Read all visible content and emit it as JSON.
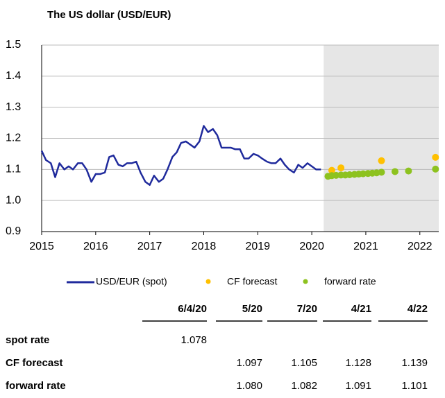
{
  "chart_data": {
    "type": "line_scatter",
    "title": "The US dollar (USD/EUR)",
    "xlim": [
      2015,
      2022.35
    ],
    "xticks": [
      2015,
      2016,
      2017,
      2018,
      2019,
      2020,
      2021,
      2022
    ],
    "ylim": [
      0.9,
      1.5
    ],
    "yticks": [
      {
        "value": 0.9,
        "label": "0.9"
      },
      {
        "value": 1.0,
        "label": "1.0"
      },
      1.1,
      1.2,
      1.3,
      1.4,
      1.5
    ],
    "grid": true,
    "shaded_region": [
      2020.22,
      2022.35
    ],
    "shade_color": "#e6e6e6",
    "series": [
      {
        "name": "USD/EUR (spot)",
        "kind": "line",
        "color": "#1f2a9c",
        "x": [
          2015.0,
          2015.08,
          2015.17,
          2015.25,
          2015.33,
          2015.42,
          2015.5,
          2015.58,
          2015.67,
          2015.75,
          2015.83,
          2015.92,
          2016.0,
          2016.08,
          2016.17,
          2016.25,
          2016.33,
          2016.42,
          2016.5,
          2016.58,
          2016.67,
          2016.75,
          2016.83,
          2016.92,
          2017.0,
          2017.08,
          2017.17,
          2017.25,
          2017.33,
          2017.42,
          2017.5,
          2017.58,
          2017.67,
          2017.75,
          2017.83,
          2017.92,
          2018.0,
          2018.08,
          2018.17,
          2018.25,
          2018.33,
          2018.42,
          2018.5,
          2018.58,
          2018.67,
          2018.75,
          2018.83,
          2018.92,
          2019.0,
          2019.08,
          2019.17,
          2019.25,
          2019.33,
          2019.42,
          2019.5,
          2019.58,
          2019.67,
          2019.75,
          2019.83,
          2019.92,
          2020.0,
          2020.08,
          2020.17
        ],
        "values": [
          1.16,
          1.13,
          1.12,
          1.075,
          1.12,
          1.1,
          1.11,
          1.1,
          1.12,
          1.12,
          1.1,
          1.06,
          1.085,
          1.085,
          1.09,
          1.14,
          1.145,
          1.115,
          1.11,
          1.12,
          1.12,
          1.125,
          1.09,
          1.06,
          1.05,
          1.08,
          1.06,
          1.07,
          1.1,
          1.14,
          1.155,
          1.185,
          1.19,
          1.18,
          1.17,
          1.19,
          1.24,
          1.22,
          1.23,
          1.21,
          1.17,
          1.17,
          1.17,
          1.165,
          1.165,
          1.135,
          1.135,
          1.15,
          1.145,
          1.135,
          1.125,
          1.12,
          1.12,
          1.135,
          1.115,
          1.1,
          1.09,
          1.115,
          1.105,
          1.12,
          1.11,
          1.1,
          1.1
        ]
      },
      {
        "name": "CF forecast",
        "kind": "dots",
        "color": "#ffc000",
        "x": [
          2020.37,
          2020.54,
          2021.29,
          2022.29
        ],
        "values": [
          1.097,
          1.105,
          1.128,
          1.139
        ]
      },
      {
        "name": "forward rate",
        "kind": "dots",
        "color": "#8dc21f",
        "x": [
          2020.3,
          2020.37,
          2020.45,
          2020.54,
          2020.62,
          2020.7,
          2020.79,
          2020.87,
          2020.95,
          2021.04,
          2021.12,
          2021.2,
          2021.29,
          2021.54,
          2021.79,
          2022.29
        ],
        "values": [
          1.078,
          1.08,
          1.081,
          1.082,
          1.082,
          1.083,
          1.084,
          1.085,
          1.086,
          1.087,
          1.088,
          1.089,
          1.091,
          1.093,
          1.095,
          1.101
        ]
      }
    ]
  },
  "table": {
    "columns": [
      "6/4/20",
      "5/20",
      "7/20",
      "4/21",
      "4/22"
    ],
    "rows": [
      {
        "label": "spot rate",
        "cells": [
          "1.078",
          null,
          null,
          null,
          null
        ]
      },
      {
        "label": "CF forecast",
        "cells": [
          null,
          "1.097",
          "1.105",
          "1.128",
          "1.139"
        ]
      },
      {
        "label": "forward rate",
        "cells": [
          null,
          "1.080",
          "1.082",
          "1.091",
          "1.101"
        ]
      }
    ]
  }
}
